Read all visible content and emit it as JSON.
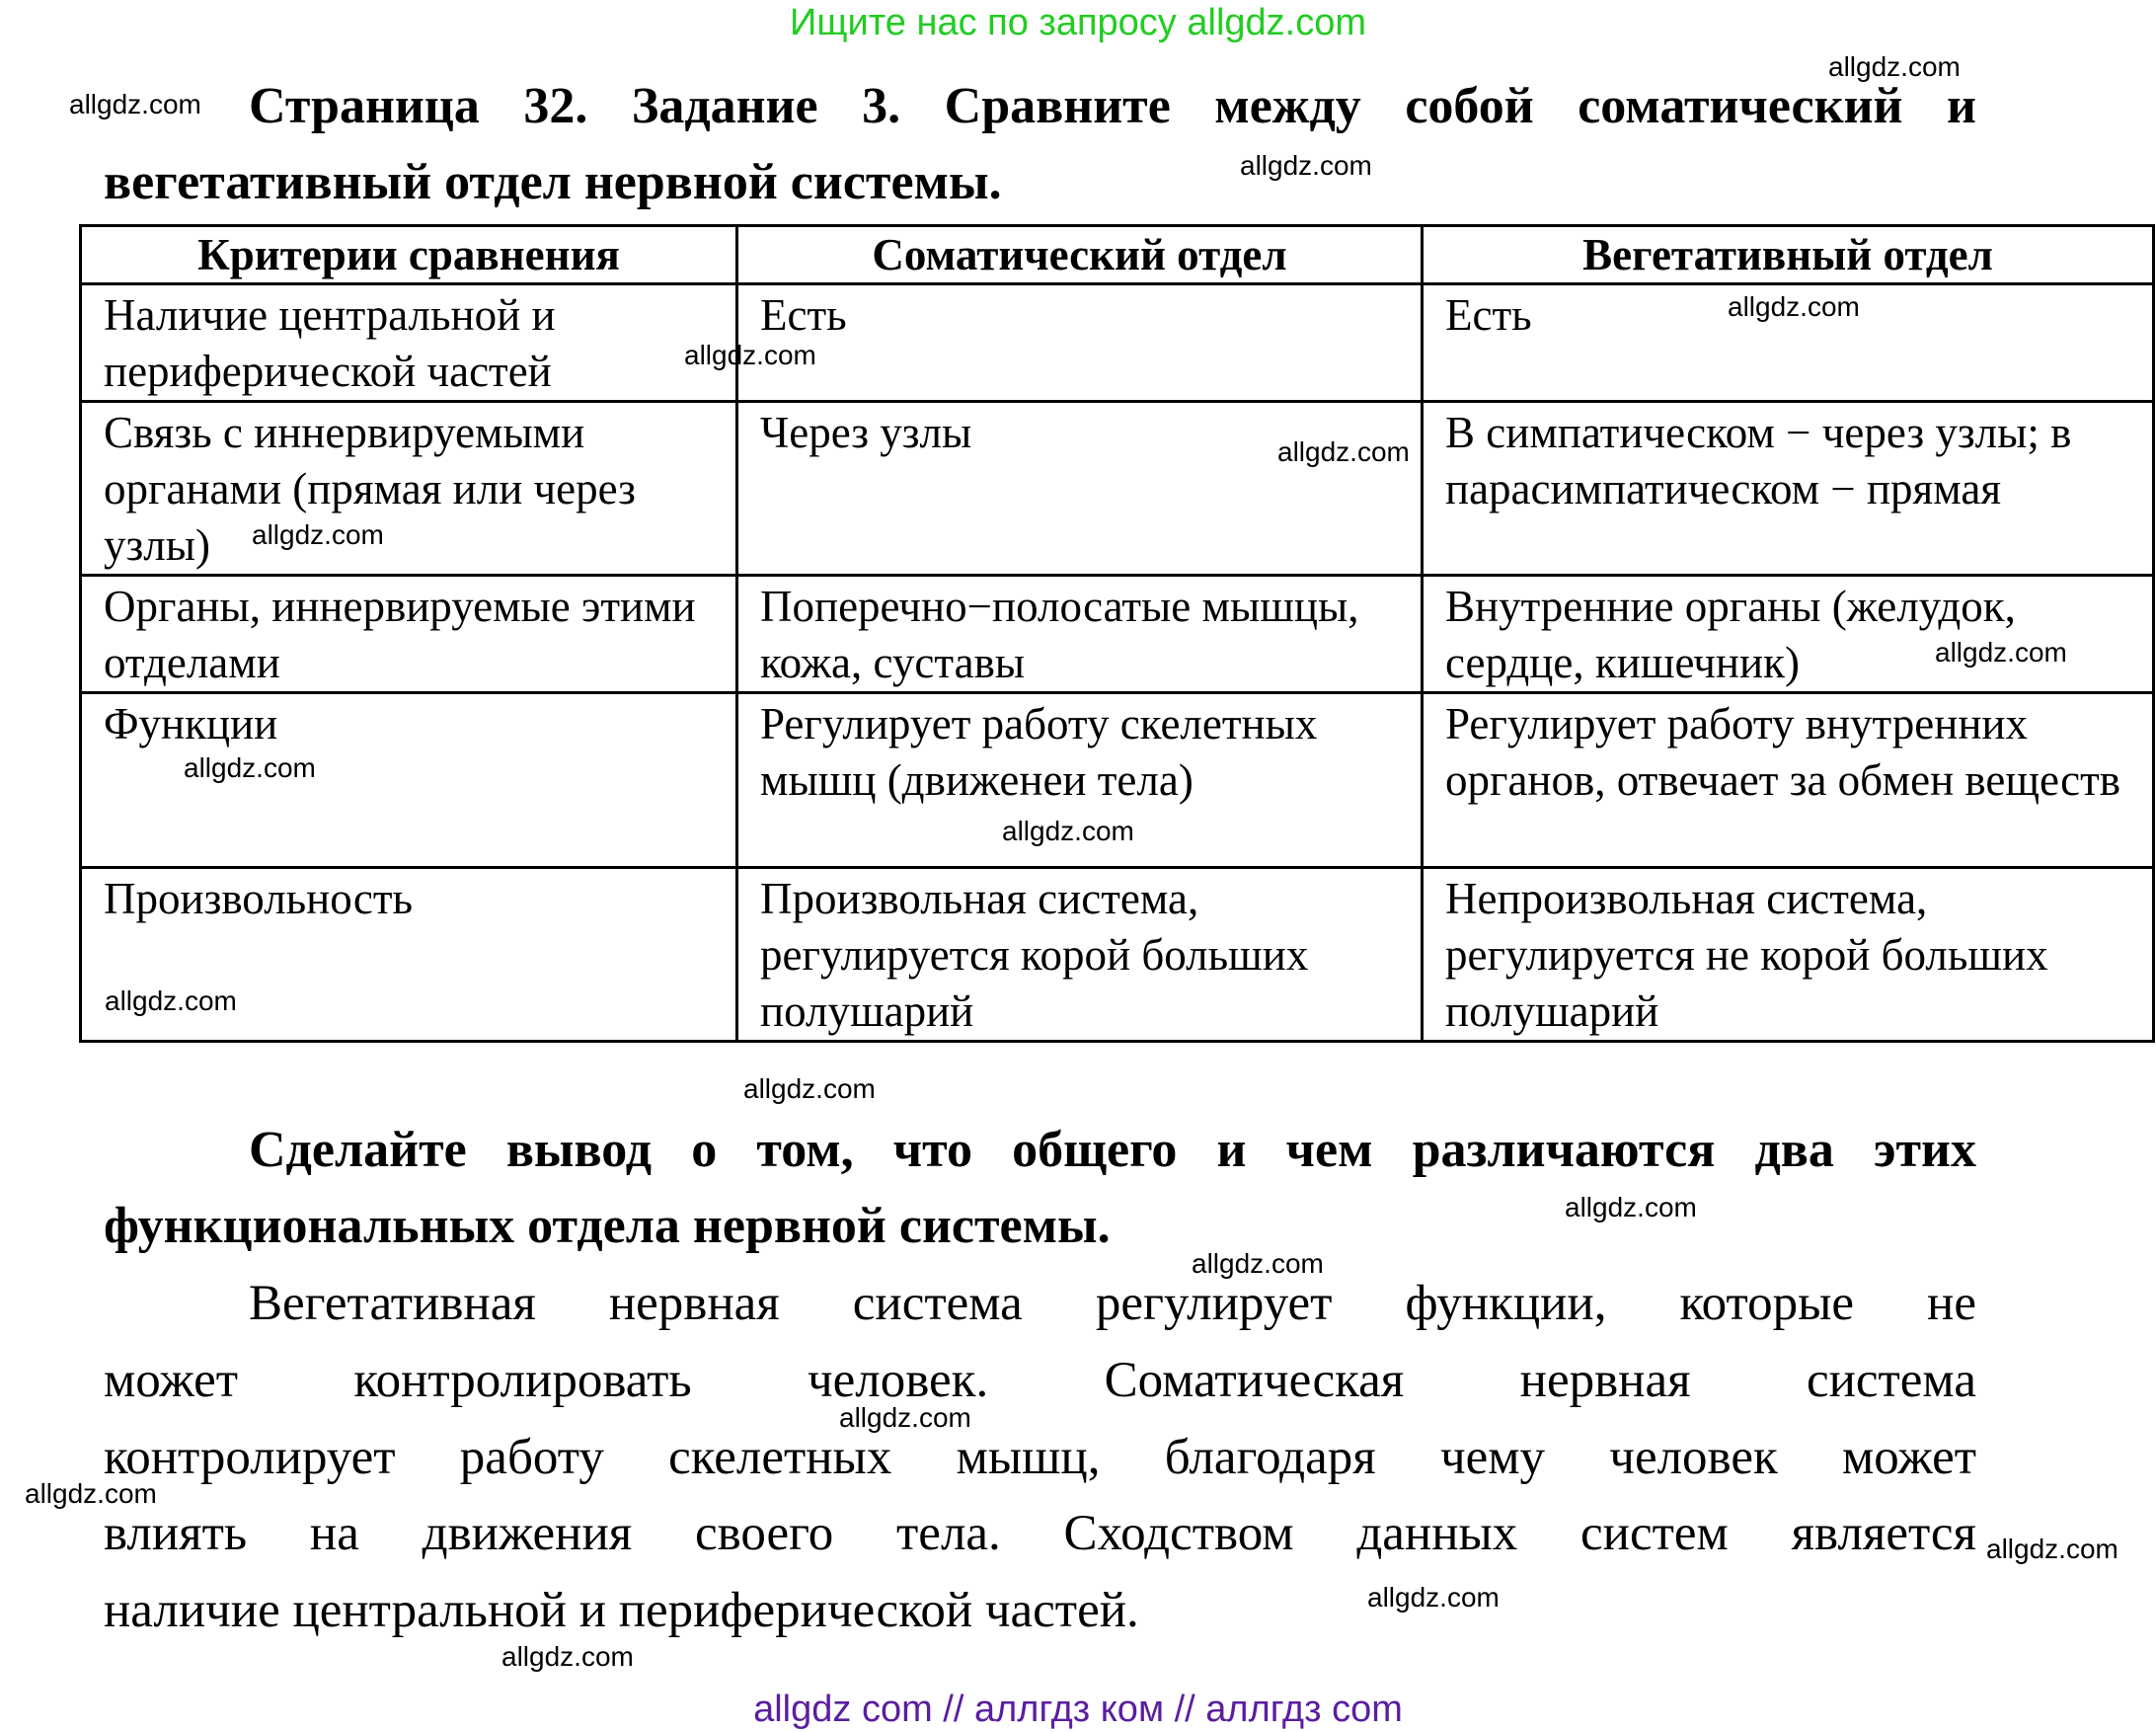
{
  "banner_top": "Ищите нас по запросу allgdz.com",
  "title_lines": [
    "Страница 32. Задание 3. Сравните между собой соматический и",
    "вегетативный отдел нервной системы."
  ],
  "table": {
    "headers": [
      "Критерии сравнения",
      "Соматический отдел",
      "Вегетативный отдел"
    ],
    "rows": [
      [
        "Наличие центральной и периферической частей",
        "Есть",
        "Есть"
      ],
      [
        "Связь с иннервируемыми органами (прямая или через узлы)",
        "Через узлы",
        "В симпатическом − через узлы; в парасимпатическом − прямая"
      ],
      [
        "Органы, иннервируемые этими отделами",
        "Поперечно−полосатые мышцы, кожа, суставы",
        "Внутренние органы (желудок, сердце, кишечник)"
      ],
      [
        "Функции",
        "Регулирует работу скелетных мышц (движенеи тела)",
        "Регулирует работу внутренних органов, отвечает за обмен веществ"
      ],
      [
        "Произвольность",
        "Произвольная система, регулируется корой больших полушарий",
        "Непроизвольная система, регулируется не корой больших полушарий"
      ]
    ]
  },
  "conclusion_heading_lines": [
    "Сделайте вывод о том, что общего и чем различаются два этих",
    "функциональных отдела нервной системы."
  ],
  "answer_lines": [
    "Вегетативная нервная система регулирует функции, которые не",
    "может контролировать человек. Соматическая нервная система",
    "контролирует работу скелетных мышц, благодаря чему человек может",
    "влиять на движения своего тела. Сходством данных систем является",
    "наличие центральной и периферической частей."
  ],
  "watermark": "allgdz.com",
  "banner_bottom": "allgdz com  //  аллгдз ком  //  аллгдз com",
  "colors": {
    "banner_top": "#22cc22",
    "banner_bottom": "#5a1ea0"
  }
}
